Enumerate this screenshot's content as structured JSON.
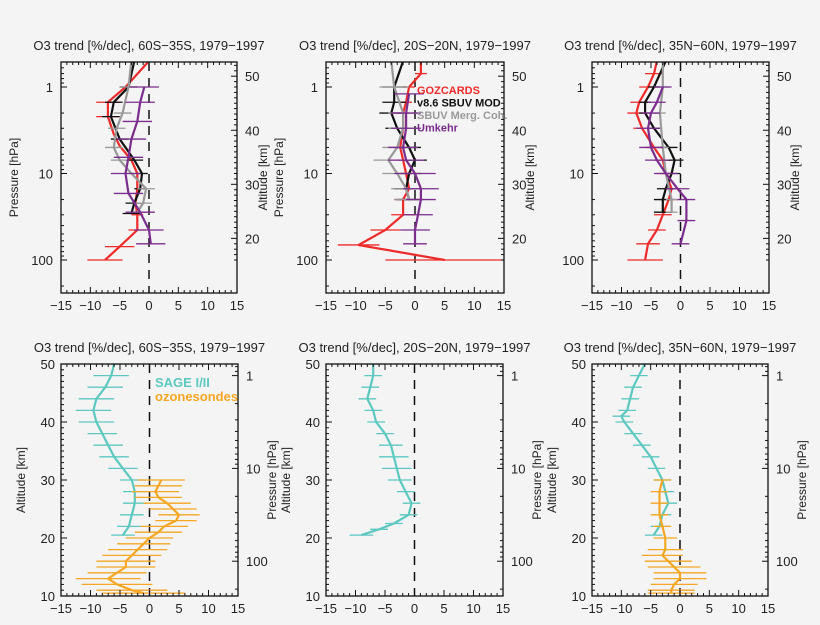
{
  "chart_data": [
    {
      "type": "line",
      "title": "O3 trend [%/dec], 60S−35S, 1979−1997",
      "ylabel_left": "Pressure [hPa]",
      "ylabel_right": "Altitude [km]",
      "xlim": [
        -15,
        15
      ],
      "y_quantity": "pressure",
      "y_scale": "log",
      "x_ticks": [
        "−15",
        "−10",
        "−5",
        "0",
        "5",
        "10",
        "15"
      ],
      "y_ticks_left": [
        "1",
        "10",
        "100"
      ],
      "y_ticks_right": [
        "20",
        "30",
        "40",
        "50"
      ],
      "zero_line": "dashed",
      "series": [
        {
          "name": "GOZCARDS",
          "color": "#ee2a2a",
          "y": [
            0.5,
            1,
            1.5,
            2.2,
            3.5,
            4.8,
            7,
            10,
            15,
            22,
            30,
            45,
            70,
            100
          ],
          "x": [
            0,
            -4,
            -7,
            -7,
            -6,
            -5,
            -3,
            -2,
            -2,
            -2.3,
            -2,
            -2,
            -5,
            -7.5
          ],
          "err": [
            0,
            0,
            2,
            2,
            0,
            0,
            0,
            0,
            0,
            0,
            1,
            1.5,
            2.5,
            3
          ]
        },
        {
          "name": "v8.6 SBUV MOD",
          "color": "#111111",
          "y": [
            0.5,
            1,
            1.5,
            2.2,
            4,
            7,
            10,
            15,
            22,
            29
          ],
          "x": [
            -2.5,
            -3.5,
            -6,
            -6.5,
            -5,
            -2.5,
            -1.2,
            -1.5,
            -2.5,
            -3
          ],
          "err": [
            0,
            1.5,
            1.5,
            1.5,
            1.5,
            1.5,
            1,
            1,
            1.5,
            1.5
          ]
        },
        {
          "name": "SBUV Merg. Coh.",
          "color": "#999999",
          "y": [
            0.5,
            1,
            2,
            3,
            5,
            7,
            10,
            15,
            22,
            28
          ],
          "x": [
            -3,
            -3.5,
            -4.5,
            -5.5,
            -6,
            -5,
            -3,
            -0.5,
            -1,
            -2
          ],
          "err": [
            0,
            1.5,
            1.5,
            1.5,
            1.5,
            1.5,
            1.5,
            1.5,
            1.5,
            1.5
          ]
        },
        {
          "name": "Umkehr",
          "color": "#7b2d8e",
          "y": [
            1,
            1.5,
            2.5,
            4,
            6.5,
            10,
            17,
            28,
            45,
            65
          ],
          "x": [
            -0.8,
            -1.5,
            -2,
            -3,
            -3.5,
            -4,
            -3.5,
            -1.5,
            0,
            0.3
          ],
          "err": [
            2.5,
            2.5,
            2.5,
            2.5,
            2.5,
            2.5,
            2.5,
            2.5,
            2.5,
            2.5
          ]
        }
      ]
    },
    {
      "type": "line",
      "title": "O3 trend [%/dec], 20S−20N, 1979−1997",
      "ylabel_left": "Pressure [hPa]",
      "ylabel_right": "Altitude [km]",
      "xlim": [
        -15,
        15
      ],
      "y_quantity": "pressure",
      "y_scale": "log",
      "x_ticks": [
        "−15",
        "−10",
        "−5",
        "0",
        "5",
        "10",
        "15"
      ],
      "y_ticks_left": [
        "1",
        "10",
        "100"
      ],
      "y_ticks_right": [
        "20",
        "30",
        "40",
        "50"
      ],
      "zero_line": "dashed",
      "legend": {
        "placement": "top-right",
        "entries": [
          {
            "label": "GOZCARDS",
            "color": "#ee2a2a"
          },
          {
            "label": "v8.6 SBUV MOD",
            "color": "#111111"
          },
          {
            "label": "SBUV Merg. Coh.",
            "color": "#999999"
          },
          {
            "label": "Umkehr",
            "color": "#7b2d8e"
          }
        ]
      },
      "series": [
        {
          "name": "GOZCARDS",
          "color": "#ee2a2a",
          "y": [
            0.5,
            0.7,
            1,
            1.5,
            2,
            3,
            5,
            7,
            10,
            15,
            20,
            30,
            45,
            67,
            100
          ],
          "x": [
            1,
            1,
            -1,
            -1.5,
            -2,
            -2,
            -2.5,
            -2,
            -1.5,
            -1,
            -2,
            -2,
            -5,
            -9.5,
            5
          ],
          "err": [
            0,
            1,
            1,
            1,
            1,
            1,
            1,
            1,
            1,
            1.5,
            1.5,
            2,
            2.5,
            3.5,
            10
          ]
        },
        {
          "name": "v8.6 SBUV MOD",
          "color": "#111111",
          "y": [
            0.5,
            1,
            1.5,
            2,
            3,
            5,
            7,
            10,
            15,
            20
          ],
          "x": [
            -2,
            -3.5,
            -3.5,
            -4,
            -3,
            -1,
            0,
            -1,
            -1.5,
            -1
          ],
          "err": [
            2,
            2,
            2,
            2,
            2,
            2,
            2,
            2,
            2,
            2
          ]
        },
        {
          "name": "SBUV Merg. Coh.",
          "color": "#999999",
          "y": [
            0.5,
            1,
            2,
            3,
            5,
            7,
            10,
            15,
            20
          ],
          "x": [
            -4,
            -3.5,
            -2,
            -2,
            -3,
            -4.5,
            -3,
            -1.5,
            -1
          ],
          "err": [
            2.5,
            2.5,
            2.5,
            2.5,
            2.5,
            2.5,
            2.5,
            2.5,
            2.5
          ]
        },
        {
          "name": "Umkehr",
          "color": "#7b2d8e",
          "y": [
            1.2,
            2,
            3,
            5,
            7,
            10,
            15,
            20,
            30,
            45,
            65
          ],
          "x": [
            -1,
            -1.5,
            -1.5,
            -2,
            -1.5,
            0,
            1,
            1,
            0.5,
            0,
            0
          ],
          "err": [
            2.5,
            2.5,
            2.5,
            2.5,
            3,
            3.5,
            3,
            2.5,
            2.5,
            2.5,
            2
          ]
        }
      ]
    },
    {
      "type": "line",
      "title": "O3 trend [%/dec], 35N−60N, 1979−1997",
      "ylabel_left": "",
      "ylabel_right": "Altitude [km]",
      "xlim": [
        -15,
        15
      ],
      "y_quantity": "pressure",
      "y_scale": "log",
      "x_ticks": [
        "−15",
        "−10",
        "−5",
        "0",
        "5",
        "10",
        "15"
      ],
      "y_ticks_left": [
        "1",
        "10",
        "100"
      ],
      "y_ticks_right": [
        "20",
        "30",
        "40",
        "50"
      ],
      "zero_line": "dashed",
      "series": [
        {
          "name": "GOZCARDS",
          "color": "#ee2a2a",
          "y": [
            0.5,
            0.7,
            1,
            1.5,
            2,
            3,
            5,
            7,
            10,
            15,
            20,
            30,
            45,
            65,
            100
          ],
          "x": [
            -4,
            -4.5,
            -5.5,
            -7,
            -7.5,
            -6.5,
            -4.5,
            -3,
            -2.5,
            -1.5,
            -2,
            -3,
            -4,
            -5.5,
            -6
          ],
          "err": [
            0,
            1.5,
            1.5,
            1.5,
            1.5,
            1.5,
            1.5,
            1.5,
            1.5,
            1.5,
            1.5,
            1.5,
            1.5,
            2,
            3
          ]
        },
        {
          "name": "v8.6 SBUV MOD",
          "color": "#111111",
          "y": [
            0.5,
            1,
            1.5,
            2,
            3,
            5,
            7,
            10,
            15,
            20,
            28
          ],
          "x": [
            -2.5,
            -4.5,
            -6,
            -6,
            -4.5,
            -2,
            -1,
            -1.5,
            -2.5,
            -3,
            -3
          ],
          "err": [
            0,
            1,
            1,
            1,
            1,
            1.5,
            1.5,
            1.5,
            1.5,
            1.5,
            1.5
          ]
        },
        {
          "name": "SBUV Merg. Coh.",
          "color": "#999999",
          "y": [
            0.5,
            1,
            2,
            5,
            10,
            20,
            28
          ],
          "x": [
            -3,
            -3,
            -3.5,
            -3,
            -2.5,
            -1.5,
            -1.5
          ],
          "err": [
            1,
            1,
            1,
            1,
            1,
            1,
            1
          ]
        },
        {
          "name": "Umkehr",
          "color": "#7b2d8e",
          "y": [
            1,
            1.5,
            2,
            3,
            5,
            7,
            10,
            15,
            20,
            35,
            65
          ],
          "x": [
            -3,
            -4,
            -5,
            -5.5,
            -5,
            -4,
            -2.5,
            -0.5,
            1,
            1,
            0
          ],
          "err": [
            1.5,
            1.5,
            1.5,
            2,
            2,
            2,
            2,
            2,
            1.5,
            1.5,
            1.5
          ]
        }
      ]
    },
    {
      "type": "line",
      "title": "O3 trend [%/dec], 60S−35S, 1979−1997",
      "ylabel_left": "Altitude [km]",
      "ylabel_right": "Pressure [hPa]",
      "xlim": [
        -15,
        15
      ],
      "ylim": [
        10,
        50
      ],
      "y_quantity": "altitude",
      "x_ticks": [
        "−15",
        "−10",
        "−5",
        "0",
        "5",
        "10",
        "15"
      ],
      "y_ticks_left": [
        "10",
        "20",
        "30",
        "40",
        "50"
      ],
      "y_ticks_right": [
        "1",
        "10",
        "100"
      ],
      "zero_line": "dashed",
      "legend": {
        "placement": "top-right",
        "entries": [
          {
            "label": "SAGE I/II",
            "color": "#5cc8c0"
          },
          {
            "label": "ozonesondes",
            "color": "#f5a623"
          }
        ]
      },
      "series": [
        {
          "name": "SAGE I/II",
          "color": "#5cc8c0",
          "y": [
            50,
            48,
            46,
            44,
            42,
            40,
            38,
            36,
            34,
            32,
            30,
            28,
            26,
            24,
            22,
            20.5
          ],
          "x": [
            -6,
            -6.5,
            -7.5,
            -9,
            -9.5,
            -9,
            -8,
            -7,
            -6,
            -4.5,
            -3,
            -2.5,
            -2.5,
            -3,
            -3.5,
            -4.5
          ],
          "err": [
            3,
            3,
            3,
            3,
            3,
            3,
            2.5,
            2.5,
            2.5,
            2.5,
            2,
            2,
            2,
            2,
            2,
            2
          ]
        },
        {
          "name": "ozonesondes",
          "color": "#f5a623",
          "y": [
            30,
            29,
            28,
            27,
            26,
            25,
            24,
            23,
            22,
            21,
            20,
            19,
            18,
            17,
            16,
            15,
            14,
            13,
            12,
            11,
            10.5
          ],
          "x": [
            2,
            1.5,
            1,
            1.5,
            3,
            4,
            5,
            4.5,
            2.5,
            1.5,
            0,
            -1,
            -2,
            -3,
            -4,
            -4,
            -5.5,
            -7,
            -5.5,
            -3,
            -1
          ],
          "err": [
            4,
            4,
            4,
            4,
            4,
            4,
            3.5,
            3.5,
            4,
            4,
            4,
            4.5,
            5,
            5,
            5,
            5,
            5,
            5.5,
            6,
            6,
            7
          ]
        }
      ]
    },
    {
      "type": "line",
      "title": "O3 trend [%/dec], 20S−20N, 1979−1997",
      "ylabel_left": "Altitude [km]",
      "ylabel_right": "Pressure [hPa]",
      "xlim": [
        -15,
        15
      ],
      "ylim": [
        10,
        50
      ],
      "y_quantity": "altitude",
      "x_ticks": [
        "−15",
        "−10",
        "−5",
        "0",
        "5",
        "10",
        "15"
      ],
      "y_ticks_left": [
        "10",
        "20",
        "30",
        "40",
        "50"
      ],
      "y_ticks_right": [
        "1",
        "10",
        "100"
      ],
      "zero_line": "dashed",
      "series": [
        {
          "name": "SAGE I/II",
          "color": "#5cc8c0",
          "y": [
            50,
            48,
            46,
            44,
            42,
            40,
            38,
            36,
            34,
            32,
            30,
            28,
            26,
            24,
            22.5,
            21.5,
            20.5
          ],
          "x": [
            -7,
            -7,
            -7.5,
            -8,
            -7,
            -6.5,
            -5,
            -4,
            -3.5,
            -3,
            -2.5,
            -1.5,
            -0.5,
            -1,
            -3.5,
            -6,
            -9
          ],
          "err": [
            1.5,
            1.5,
            1.5,
            1.5,
            1.5,
            1.5,
            1.5,
            2,
            2.5,
            2.5,
            2,
            1.5,
            1.5,
            1.5,
            1.5,
            1.5,
            2
          ]
        }
      ]
    },
    {
      "type": "line",
      "title": "O3 trend [%/dec], 35N−60N, 1979−1997",
      "ylabel_left": "Altitude [km]",
      "ylabel_right": "Pressure [hPa]",
      "xlim": [
        -15,
        15
      ],
      "ylim": [
        10,
        50
      ],
      "y_quantity": "altitude",
      "x_ticks": [
        "−15",
        "−10",
        "−5",
        "0",
        "5",
        "10",
        "15"
      ],
      "y_ticks_left": [
        "10",
        "20",
        "30",
        "40",
        "50"
      ],
      "y_ticks_right": [
        "1",
        "10",
        "100"
      ],
      "zero_line": "dashed",
      "series": [
        {
          "name": "SAGE I/II",
          "color": "#5cc8c0",
          "y": [
            50,
            48,
            46,
            44,
            42,
            41,
            40,
            38,
            36,
            34,
            32,
            30,
            28,
            26,
            24,
            22,
            20.5
          ],
          "x": [
            -6,
            -7,
            -8,
            -8.5,
            -9,
            -10,
            -9.5,
            -8,
            -6.5,
            -5,
            -4,
            -3,
            -2.5,
            -2,
            -3,
            -3.5,
            -4.5
          ],
          "err": [
            1.5,
            1.5,
            1.5,
            1.5,
            1.5,
            1.5,
            1.5,
            1.5,
            1.5,
            1.5,
            1.5,
            1.5,
            1.5,
            1.5,
            1.5,
            1.5,
            1.5
          ]
        },
        {
          "name": "ozonesondes",
          "color": "#f5a623",
          "y": [
            30,
            28,
            26,
            24,
            22,
            20,
            18,
            17,
            16,
            15,
            14,
            13,
            12,
            11,
            10.5
          ],
          "x": [
            -3,
            -3.5,
            -3.5,
            -3.5,
            -3,
            -2.5,
            -2.5,
            -3,
            -2,
            -1,
            0,
            0,
            -1,
            -1.5,
            -1.5
          ],
          "err": [
            1.5,
            1.5,
            1.5,
            1.5,
            1.5,
            2,
            3,
            3.5,
            4,
            4.5,
            4.5,
            4.5,
            4,
            4,
            4
          ]
        }
      ]
    }
  ]
}
